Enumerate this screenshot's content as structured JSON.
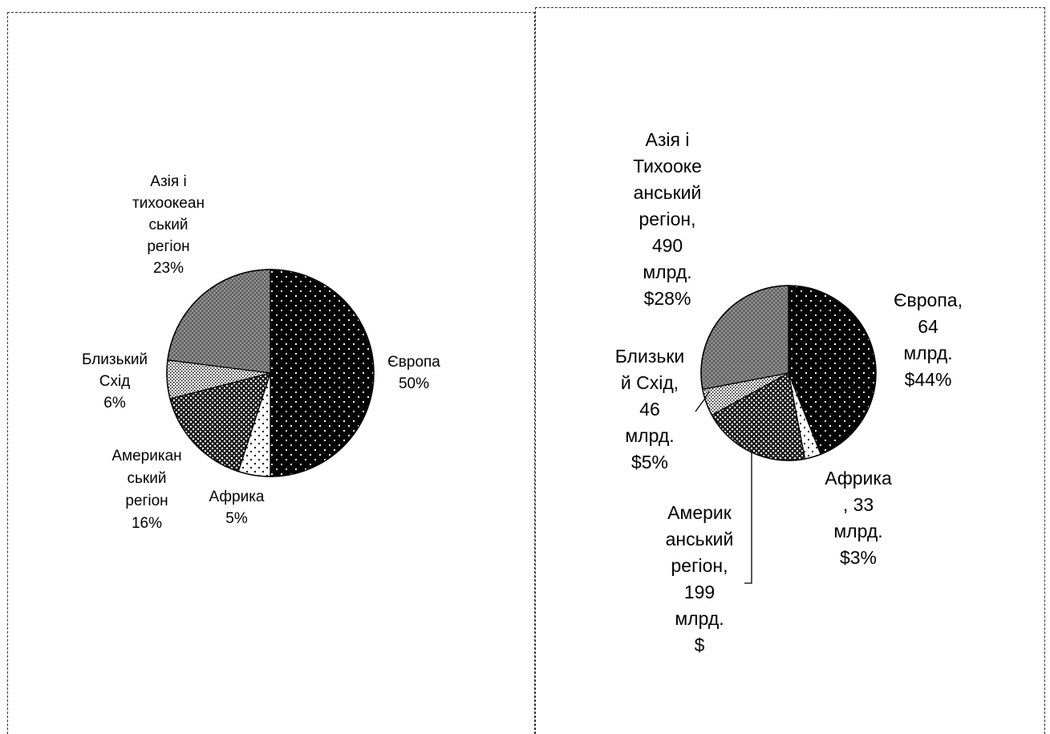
{
  "chart_data": [
    {
      "type": "pie",
      "slices": [
        {
          "label": "Європа",
          "value": 50,
          "label_text": "Європа\n50%",
          "pattern": "dots-on-black"
        },
        {
          "label": "Африка",
          "value": 5,
          "label_text": "Африка\n5%",
          "pattern": "sparse-dots"
        },
        {
          "label": "Американський регіон",
          "value": 16,
          "label_text": "Американ\nський\nрегіон\n16%",
          "pattern": "dense-dots"
        },
        {
          "label": "Близький Схід",
          "value": 6,
          "label_text": "Близький\nСхід\n6%",
          "pattern": "fine-dots"
        },
        {
          "label": "Азія і тихоокеанський регіон",
          "value": 23,
          "label_text": "Азія і\nтихоокеан\nський\nрегіон\n23%",
          "pattern": "crosshatch"
        }
      ]
    },
    {
      "type": "pie",
      "slices": [
        {
          "label": "Європа",
          "value": 44,
          "label_text": "Європа,\n64\nмлрд.\n$44%",
          "pattern": "dots-on-black"
        },
        {
          "label": "Африка",
          "value": 3,
          "label_text": "Африка\n, 33\nмлрд.\n$3%",
          "pattern": "sparse-dots"
        },
        {
          "label": "Американський регіон",
          "value": 20,
          "label_text": "Америк\nанський\nрегіон,\n199\nмлрд.\n$",
          "pattern": "dense-dots"
        },
        {
          "label": "Близький Схід",
          "value": 5,
          "label_text": "Близьки\nй Схід,\n46\nмлрд.\n$5%",
          "pattern": "fine-dots"
        },
        {
          "label": "Азія і Тихоокеанський регіон",
          "value": 28,
          "label_text": "Азія і\nТихооке\nанський\nрегіон,\n490\nмлрд.\n$28%",
          "pattern": "crosshatch"
        }
      ]
    }
  ]
}
